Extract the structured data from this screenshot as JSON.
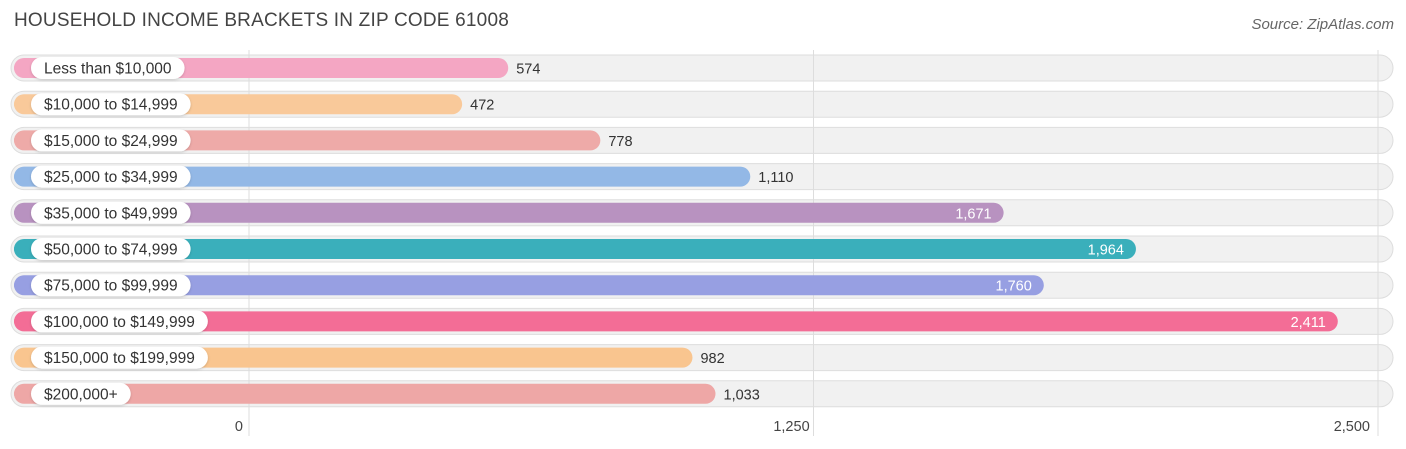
{
  "title": "HOUSEHOLD INCOME BRACKETS IN ZIP CODE 61008",
  "source": "Source: ZipAtlas.com",
  "chart_data": {
    "type": "bar",
    "orientation": "horizontal",
    "title": "HOUSEHOLD INCOME BRACKETS IN ZIP CODE 61008",
    "categories": [
      "Less than $10,000",
      "$10,000 to $14,999",
      "$15,000 to $24,999",
      "$25,000 to $34,999",
      "$35,000 to $49,999",
      "$50,000 to $74,999",
      "$75,000 to $99,999",
      "$100,000 to $149,999",
      "$150,000 to $199,999",
      "$200,000+"
    ],
    "values": [
      574,
      472,
      778,
      1110,
      1671,
      1964,
      1760,
      2411,
      982,
      1033
    ],
    "value_labels": [
      "574",
      "472",
      "778",
      "1,110",
      "1,671",
      "1,964",
      "1,760",
      "2,411",
      "982",
      "1,033"
    ],
    "colors": [
      "#f4a6c3",
      "#f9c99a",
      "#eeaaa8",
      "#93b8e6",
      "#b892c0",
      "#3aafbb",
      "#979fe2",
      "#f36d96",
      "#f9c58f",
      "#eea7a6"
    ],
    "xlim": [
      0,
      2500
    ],
    "xticks": [
      0,
      1250,
      2500
    ],
    "xtick_labels": [
      "0",
      "1,250",
      "2,500"
    ],
    "grid": true
  }
}
